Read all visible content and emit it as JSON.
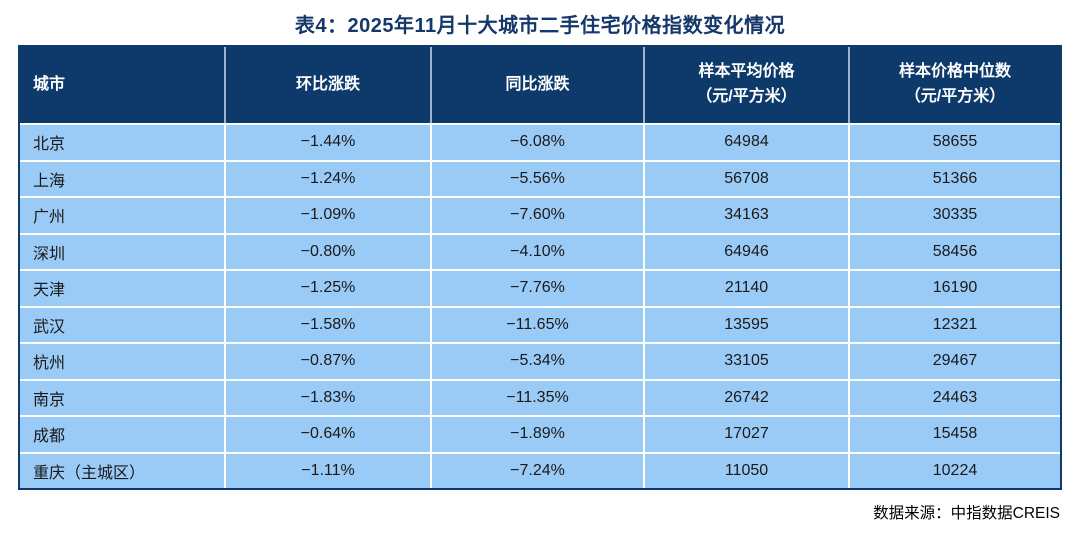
{
  "title": "表4：2025年11月十大城市二手住宅价格指数变化情况",
  "source_note": "数据来源：中指数据CREIS",
  "colors": {
    "header_bg": "#0D3A6B",
    "row_bg": "#9ACAF6",
    "title_color": "#14386B",
    "header_text": "#FFFFFF",
    "cell_text": "#1A1A1A",
    "grid_line": "#FFFFFF",
    "outer_border": "#0D3A6B"
  },
  "table": {
    "columns": [
      {
        "label": "城市",
        "sub": "",
        "align": "left"
      },
      {
        "label": "环比涨跌",
        "sub": "",
        "align": "center"
      },
      {
        "label": "同比涨跌",
        "sub": "",
        "align": "center"
      },
      {
        "label": "样本平均价格",
        "sub": "（元/平方米）",
        "align": "center"
      },
      {
        "label": "样本价格中位数",
        "sub": "（元/平方米）",
        "align": "center"
      }
    ],
    "rows": [
      {
        "city": "北京",
        "mom": "−1.44%",
        "yoy": "−6.08%",
        "avg_price": "64984",
        "median_price": "58655"
      },
      {
        "city": "上海",
        "mom": "−1.24%",
        "yoy": "−5.56%",
        "avg_price": "56708",
        "median_price": "51366"
      },
      {
        "city": "广州",
        "mom": "−1.09%",
        "yoy": "−7.60%",
        "avg_price": "34163",
        "median_price": "30335"
      },
      {
        "city": "深圳",
        "mom": "−0.80%",
        "yoy": "−4.10%",
        "avg_price": "64946",
        "median_price": "58456"
      },
      {
        "city": "天津",
        "mom": "−1.25%",
        "yoy": "−7.76%",
        "avg_price": "21140",
        "median_price": "16190"
      },
      {
        "city": "武汉",
        "mom": "−1.58%",
        "yoy": "−11.65%",
        "avg_price": "13595",
        "median_price": "12321"
      },
      {
        "city": "杭州",
        "mom": "−0.87%",
        "yoy": "−5.34%",
        "avg_price": "33105",
        "median_price": "29467"
      },
      {
        "city": "南京",
        "mom": "−1.83%",
        "yoy": "−11.35%",
        "avg_price": "26742",
        "median_price": "24463"
      },
      {
        "city": "成都",
        "mom": "−0.64%",
        "yoy": "−1.89%",
        "avg_price": "17027",
        "median_price": "15458"
      },
      {
        "city": "重庆（主城区）",
        "mom": "−1.11%",
        "yoy": "−7.24%",
        "avg_price": "11050",
        "median_price": "10224"
      }
    ]
  },
  "chart_data": {
    "type": "table",
    "title": "表4：2025年11月十大城市二手住宅价格指数变化情况",
    "columns": [
      "城市",
      "环比涨跌",
      "同比涨跌",
      "样本平均价格（元/平方米）",
      "样本价格中位数（元/平方米）"
    ],
    "rows": [
      [
        "北京",
        "-1.44%",
        "-6.08%",
        64984,
        58655
      ],
      [
        "上海",
        "-1.24%",
        "-5.56%",
        56708,
        51366
      ],
      [
        "广州",
        "-1.09%",
        "-7.60%",
        34163,
        30335
      ],
      [
        "深圳",
        "-0.80%",
        "-4.10%",
        64946,
        58456
      ],
      [
        "天津",
        "-1.25%",
        "-7.76%",
        21140,
        16190
      ],
      [
        "武汉",
        "-1.58%",
        "-11.65%",
        13595,
        12321
      ],
      [
        "杭州",
        "-0.87%",
        "-5.34%",
        33105,
        29467
      ],
      [
        "南京",
        "-1.83%",
        "-11.35%",
        26742,
        24463
      ],
      [
        "成都",
        "-0.64%",
        "-1.89%",
        17027,
        15458
      ],
      [
        "重庆（主城区）",
        "-1.11%",
        "-7.24%",
        11050,
        10224
      ]
    ],
    "source": "数据来源：中指数据CREIS"
  }
}
